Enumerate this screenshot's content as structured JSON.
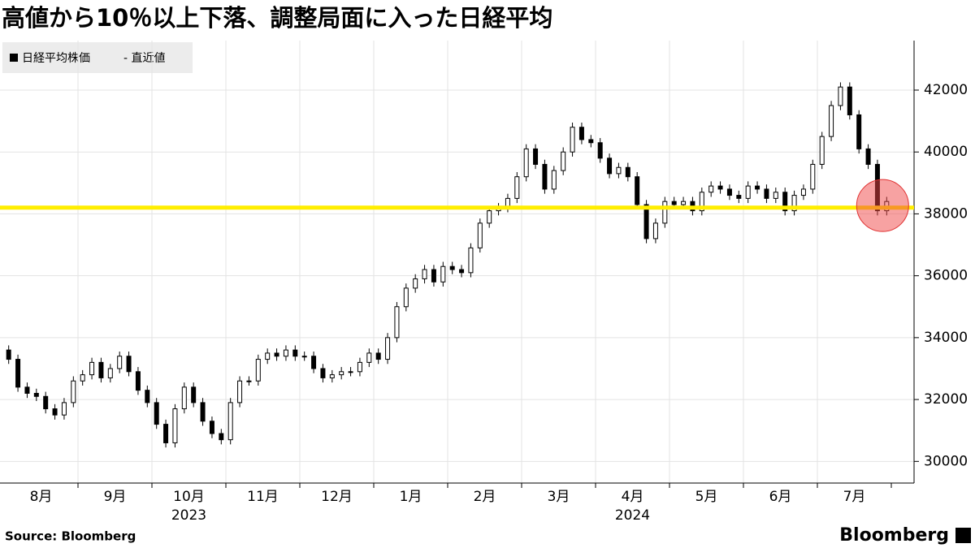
{
  "chart_data": {
    "type": "candlestick",
    "title": "高値から10％以上下落、調整局面に入った日経平均",
    "legend": [
      "日経平均株価",
      "- 直近値"
    ],
    "source": "Source:  Bloomberg",
    "logo": "Bloomberg",
    "up_color": "#ffffff",
    "down_color": "#000000",
    "ylim": [
      29300,
      43600
    ],
    "yticks": [
      30000,
      32000,
      34000,
      36000,
      38000,
      40000,
      42000
    ],
    "grid": true,
    "reference_line": {
      "value": 38200,
      "color": "#ffee00"
    },
    "years": [
      "2023",
      "2024"
    ],
    "months": [
      {
        "label": "8月",
        "open": [
          33600,
          33300,
          32400,
          32200,
          32100,
          31700,
          31500,
          31900
        ],
        "high": [
          33750,
          33450,
          32550,
          32350,
          32250,
          31850,
          32050,
          32750
        ],
        "low": [
          33150,
          32250,
          32050,
          31950,
          31550,
          31350,
          31350,
          31750
        ],
        "close": [
          33300,
          32400,
          32200,
          32100,
          31700,
          31500,
          31900,
          32600
        ]
      },
      {
        "label": "9月",
        "open": [
          32600,
          32800,
          33200,
          32700,
          33000,
          33400,
          32900,
          32300
        ],
        "high": [
          32950,
          33350,
          33350,
          33150,
          33550,
          33550,
          33050,
          32450
        ],
        "low": [
          32450,
          32650,
          32550,
          32550,
          32850,
          32750,
          32150,
          31750
        ],
        "close": [
          32800,
          33200,
          32700,
          33000,
          33400,
          32900,
          32300,
          31900
        ]
      },
      {
        "label": "10月",
        "open": [
          31900,
          31200,
          30600,
          31700,
          32400,
          31900,
          31300,
          30900
        ],
        "high": [
          32050,
          31350,
          31850,
          32550,
          32550,
          32050,
          31450,
          31050
        ],
        "low": [
          31050,
          30450,
          30450,
          31550,
          31750,
          31150,
          30750,
          30550
        ],
        "close": [
          31200,
          30600,
          31700,
          32400,
          31900,
          31300,
          30900,
          30700
        ]
      },
      {
        "label": "11月",
        "open": [
          30700,
          31900,
          32600,
          32600,
          33300,
          33500,
          33400,
          33600
        ],
        "high": [
          32050,
          32750,
          32750,
          33450,
          33650,
          33650,
          33750,
          33750
        ],
        "low": [
          30550,
          31750,
          32450,
          32450,
          33150,
          33250,
          33250,
          33250
        ],
        "close": [
          31900,
          32600,
          32600,
          33300,
          33500,
          33400,
          33600,
          33400
        ]
      },
      {
        "label": "12月",
        "open": [
          33400,
          33400,
          33000,
          32700,
          32800,
          32900,
          32900,
          33200
        ],
        "high": [
          33550,
          33550,
          33150,
          32950,
          33050,
          33050,
          33350,
          33650
        ],
        "low": [
          33250,
          32850,
          32550,
          32550,
          32650,
          32750,
          32750,
          33050
        ],
        "close": [
          33400,
          33000,
          32700,
          32800,
          32900,
          32900,
          33200,
          33500
        ]
      },
      {
        "label": "1月",
        "open": [
          33500,
          33300,
          34000,
          35000,
          35600,
          35900,
          36200,
          35800
        ],
        "high": [
          33650,
          34150,
          35150,
          35750,
          36050,
          36350,
          36350,
          36450
        ],
        "low": [
          33150,
          33150,
          33850,
          34850,
          35450,
          35750,
          35650,
          35650
        ],
        "close": [
          33300,
          34000,
          35000,
          35600,
          35900,
          36200,
          35800,
          36300
        ]
      },
      {
        "label": "2月",
        "open": [
          36300,
          36200,
          36100,
          36900,
          37700,
          38100,
          38200,
          38500
        ],
        "high": [
          36450,
          36350,
          37050,
          37850,
          38250,
          38350,
          38650,
          39350
        ],
        "low": [
          36050,
          35950,
          35950,
          36750,
          37550,
          37950,
          38050,
          38350
        ],
        "close": [
          36200,
          36100,
          36900,
          37700,
          38100,
          38200,
          38500,
          39200
        ]
      },
      {
        "label": "3月",
        "open": [
          39200,
          40100,
          39600,
          38800,
          39400,
          40000,
          40800,
          40400
        ],
        "high": [
          40250,
          40250,
          39750,
          39550,
          40150,
          40950,
          40950,
          40550
        ],
        "low": [
          39050,
          39450,
          38650,
          38650,
          39250,
          39850,
          40250,
          40150
        ],
        "close": [
          40100,
          39600,
          38800,
          39400,
          40000,
          40800,
          40400,
          40300
        ]
      },
      {
        "label": "4月",
        "open": [
          40300,
          39800,
          39300,
          39500,
          39200,
          38300,
          37200,
          37700
        ],
        "high": [
          40450,
          39950,
          39650,
          39650,
          39350,
          38450,
          37850,
          38550
        ],
        "low": [
          39650,
          39150,
          39150,
          39050,
          38150,
          37050,
          37050,
          37550
        ],
        "close": [
          39800,
          39300,
          39500,
          39200,
          38300,
          37200,
          37700,
          38400
        ]
      },
      {
        "label": "5月",
        "open": [
          38400,
          38300,
          38400,
          38100,
          38700,
          38900,
          38800,
          38600
        ],
        "high": [
          38550,
          38550,
          38550,
          38850,
          39050,
          39050,
          38950,
          38750
        ],
        "low": [
          38150,
          38150,
          37950,
          37950,
          38550,
          38650,
          38450,
          38350
        ],
        "close": [
          38300,
          38400,
          38100,
          38700,
          38900,
          38800,
          38600,
          38500
        ]
      },
      {
        "label": "6月",
        "open": [
          38500,
          38900,
          38800,
          38500,
          38700,
          38100,
          38600,
          38800
        ],
        "high": [
          39050,
          39050,
          38950,
          38850,
          38850,
          38750,
          38950,
          39750
        ],
        "low": [
          38350,
          38650,
          38350,
          38350,
          37950,
          37950,
          38450,
          38650
        ],
        "close": [
          38900,
          38800,
          38500,
          38700,
          38100,
          38600,
          38800,
          39600
        ]
      },
      {
        "label": "7月",
        "open": [
          39600,
          40500,
          41500,
          42100,
          41200,
          40100,
          39600,
          38100
        ],
        "high": [
          40650,
          41650,
          42250,
          42250,
          41350,
          40250,
          39750,
          38550
        ],
        "low": [
          39450,
          40350,
          41350,
          41050,
          39950,
          39450,
          37950,
          37950
        ],
        "close": [
          40500,
          41500,
          42100,
          41200,
          40100,
          39600,
          38100,
          38400
        ]
      }
    ]
  }
}
